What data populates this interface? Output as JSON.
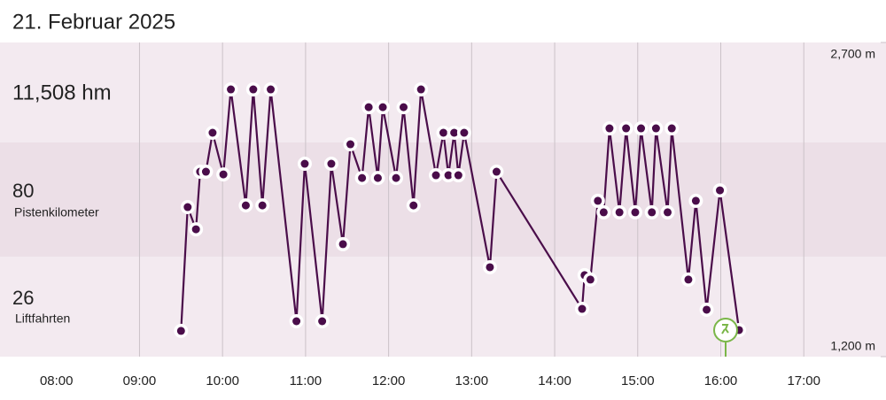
{
  "header": {
    "title": "21. Februar 2025"
  },
  "summary": [
    {
      "value": "11,508 hm"
    },
    {
      "value": "80",
      "label": "Pistenkilometer"
    },
    {
      "value": "26",
      "label": "Liftfahrten"
    }
  ],
  "chart_data": {
    "type": "line",
    "x": [
      9.5,
      9.58,
      9.68,
      9.73,
      9.8,
      9.88,
      10.01,
      10.1,
      10.28,
      10.37,
      10.48,
      10.58,
      10.89,
      10.99,
      11.2,
      11.31,
      11.45,
      11.54,
      11.68,
      11.76,
      11.87,
      11.93,
      12.09,
      12.18,
      12.3,
      12.39,
      12.57,
      12.66,
      12.72,
      12.79,
      12.84,
      12.91,
      13.22,
      13.3,
      14.33,
      14.36,
      14.43,
      14.52,
      14.59,
      14.66,
      14.78,
      14.86,
      14.97,
      15.04,
      15.17,
      15.22,
      15.36,
      15.41,
      15.61,
      15.7,
      15.83,
      15.99,
      16.22
    ],
    "series": [
      {
        "color": "#4a0d4a",
        "values": [
          1323,
          1914,
          1808,
          2083,
          2083,
          2269,
          2070,
          2476,
          1922,
          2476,
          1922,
          2476,
          1369,
          2121,
          1369,
          2121,
          1737,
          2214,
          2053,
          2391,
          2053,
          2391,
          2053,
          2391,
          1922,
          2476,
          2066,
          2269,
          2066,
          2269,
          2066,
          2269,
          1627,
          2083,
          1428,
          1589,
          1568,
          1944,
          1889,
          2290,
          1889,
          2290,
          1889,
          2290,
          1889,
          2290,
          1889,
          2290,
          1568,
          1944,
          1424,
          1994,
          1327
        ]
      }
    ],
    "xlim": [
      7.32,
      17.99
    ],
    "xticks": [
      {
        "value": 8,
        "label": "08:00"
      },
      {
        "value": 9,
        "label": "09:00"
      },
      {
        "value": 10,
        "label": "10:00"
      },
      {
        "value": 11,
        "label": "11:00"
      },
      {
        "value": 12,
        "label": "12:00"
      },
      {
        "value": 13,
        "label": "13:00"
      },
      {
        "value": 14,
        "label": "14:00"
      },
      {
        "value": 15,
        "label": "15:00"
      },
      {
        "value": 16,
        "label": "16:00"
      },
      {
        "value": 17,
        "label": "17:00"
      }
    ],
    "ylim": [
      1200,
      2700
    ],
    "yticks": [
      {
        "value": 1200,
        "label": "1,200 m"
      },
      {
        "value": 2700,
        "label": "2,700 m"
      }
    ],
    "grid": true
  }
}
